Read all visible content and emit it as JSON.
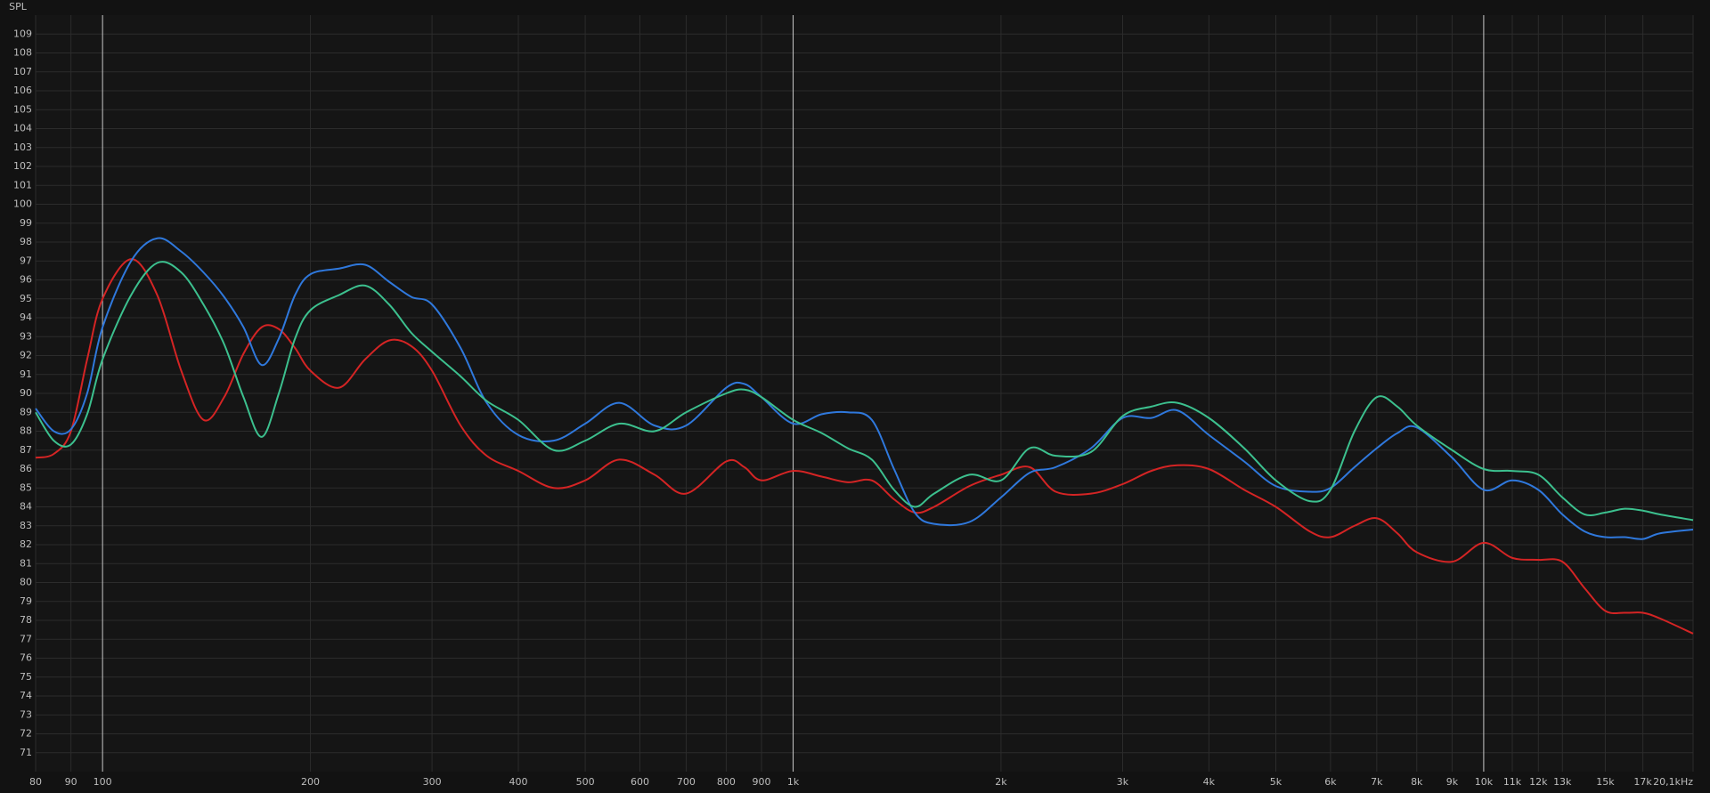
{
  "chart_data": {
    "type": "line",
    "ylabel": "SPL",
    "xscale": "log",
    "grid": true,
    "xlim": [
      80,
      20100
    ],
    "ylim": [
      70,
      110
    ],
    "xticks": [
      80,
      90,
      100,
      200,
      300,
      400,
      500,
      600,
      700,
      800,
      900,
      {
        "value": 1000,
        "label": "1k"
      },
      {
        "value": 2000,
        "label": "2k"
      },
      {
        "value": 3000,
        "label": "3k"
      },
      {
        "value": 4000,
        "label": "4k"
      },
      {
        "value": 5000,
        "label": "5k"
      },
      {
        "value": 6000,
        "label": "6k"
      },
      {
        "value": 7000,
        "label": "7k"
      },
      {
        "value": 8000,
        "label": "8k"
      },
      {
        "value": 9000,
        "label": "9k"
      },
      {
        "value": 10000,
        "label": "10k"
      },
      {
        "value": 11000,
        "label": "11k"
      },
      {
        "value": 12000,
        "label": "12k"
      },
      {
        "value": 13000,
        "label": "13k"
      },
      {
        "value": 15000,
        "label": "15k"
      },
      {
        "value": 17000,
        "label": "17k"
      },
      {
        "value": 20100,
        "label": "20,1kHz"
      }
    ],
    "yticks": [
      71,
      72,
      73,
      74,
      75,
      76,
      77,
      78,
      79,
      80,
      81,
      82,
      83,
      84,
      85,
      86,
      87,
      88,
      89,
      90,
      91,
      92,
      93,
      94,
      95,
      96,
      97,
      98,
      99,
      100,
      101,
      102,
      103,
      104,
      105,
      106,
      107,
      108,
      109
    ],
    "x": [
      80,
      85,
      90,
      95,
      100,
      110,
      120,
      130,
      140,
      150,
      160,
      170,
      180,
      190,
      200,
      220,
      240,
      260,
      280,
      300,
      330,
      360,
      400,
      450,
      500,
      560,
      630,
      700,
      800,
      850,
      900,
      1000,
      1100,
      1200,
      1300,
      1400,
      1500,
      1600,
      1800,
      2000,
      2200,
      2400,
      2700,
      3000,
      3300,
      3600,
      4000,
      4500,
      5000,
      5600,
      6000,
      6500,
      7000,
      7500,
      8000,
      9000,
      10000,
      11000,
      12000,
      13000,
      14000,
      15000,
      16000,
      17000,
      18000,
      20100
    ],
    "series": [
      {
        "color": "#d42424",
        "values": [
          86.6,
          86.8,
          88.0,
          91.8,
          95.0,
          97.1,
          95.2,
          91.2,
          88.6,
          89.8,
          92.1,
          93.5,
          93.4,
          92.4,
          91.2,
          90.3,
          91.8,
          92.8,
          92.5,
          91.2,
          88.3,
          86.7,
          85.9,
          85.0,
          85.4,
          86.5,
          85.7,
          84.7,
          86.4,
          86.1,
          85.4,
          85.9,
          85.6,
          85.3,
          85.4,
          84.4,
          83.7,
          84.0,
          85.1,
          85.7,
          86.1,
          84.8,
          84.7,
          85.2,
          85.9,
          86.2,
          86.0,
          84.9,
          84.0,
          82.7,
          82.4,
          83.0,
          83.4,
          82.6,
          81.6,
          81.1,
          82.1,
          81.3,
          81.2,
          81.1,
          79.7,
          78.5,
          78.4,
          78.4,
          78.1,
          77.3
        ]
      },
      {
        "color": "#2f78dc",
        "values": [
          89.2,
          88.0,
          88.1,
          90.0,
          93.5,
          97.0,
          98.2,
          97.5,
          96.4,
          95.1,
          93.5,
          91.5,
          92.9,
          95.2,
          96.3,
          96.6,
          96.8,
          95.9,
          95.1,
          94.7,
          92.4,
          89.5,
          87.8,
          87.5,
          88.4,
          89.5,
          88.3,
          88.3,
          90.3,
          90.5,
          89.8,
          88.4,
          88.9,
          89.0,
          88.6,
          86.0,
          83.7,
          83.1,
          83.2,
          84.5,
          85.8,
          86.1,
          87.1,
          88.7,
          88.7,
          89.1,
          87.8,
          86.4,
          85.1,
          84.8,
          85.0,
          86.1,
          87.1,
          87.9,
          88.2,
          86.6,
          84.9,
          85.4,
          84.9,
          83.6,
          82.7,
          82.4,
          82.4,
          82.3,
          82.6,
          82.8
        ]
      },
      {
        "color": "#3cc08e",
        "values": [
          89.0,
          87.5,
          87.3,
          88.9,
          91.8,
          95.2,
          96.9,
          96.4,
          94.7,
          92.6,
          89.8,
          87.7,
          90.0,
          92.9,
          94.4,
          95.2,
          95.7,
          94.7,
          93.2,
          92.2,
          90.9,
          89.6,
          88.6,
          87.0,
          87.5,
          88.4,
          88.0,
          89.0,
          90.0,
          90.2,
          89.8,
          88.6,
          87.9,
          87.1,
          86.5,
          84.9,
          84.0,
          84.7,
          85.7,
          85.4,
          87.1,
          86.7,
          86.9,
          88.8,
          89.3,
          89.5,
          88.7,
          87.1,
          85.4,
          84.3,
          84.9,
          88.0,
          89.8,
          89.3,
          88.3,
          87.0,
          86.0,
          85.9,
          85.7,
          84.5,
          83.6,
          83.7,
          83.9,
          83.8,
          83.6,
          83.3
        ]
      }
    ]
  }
}
